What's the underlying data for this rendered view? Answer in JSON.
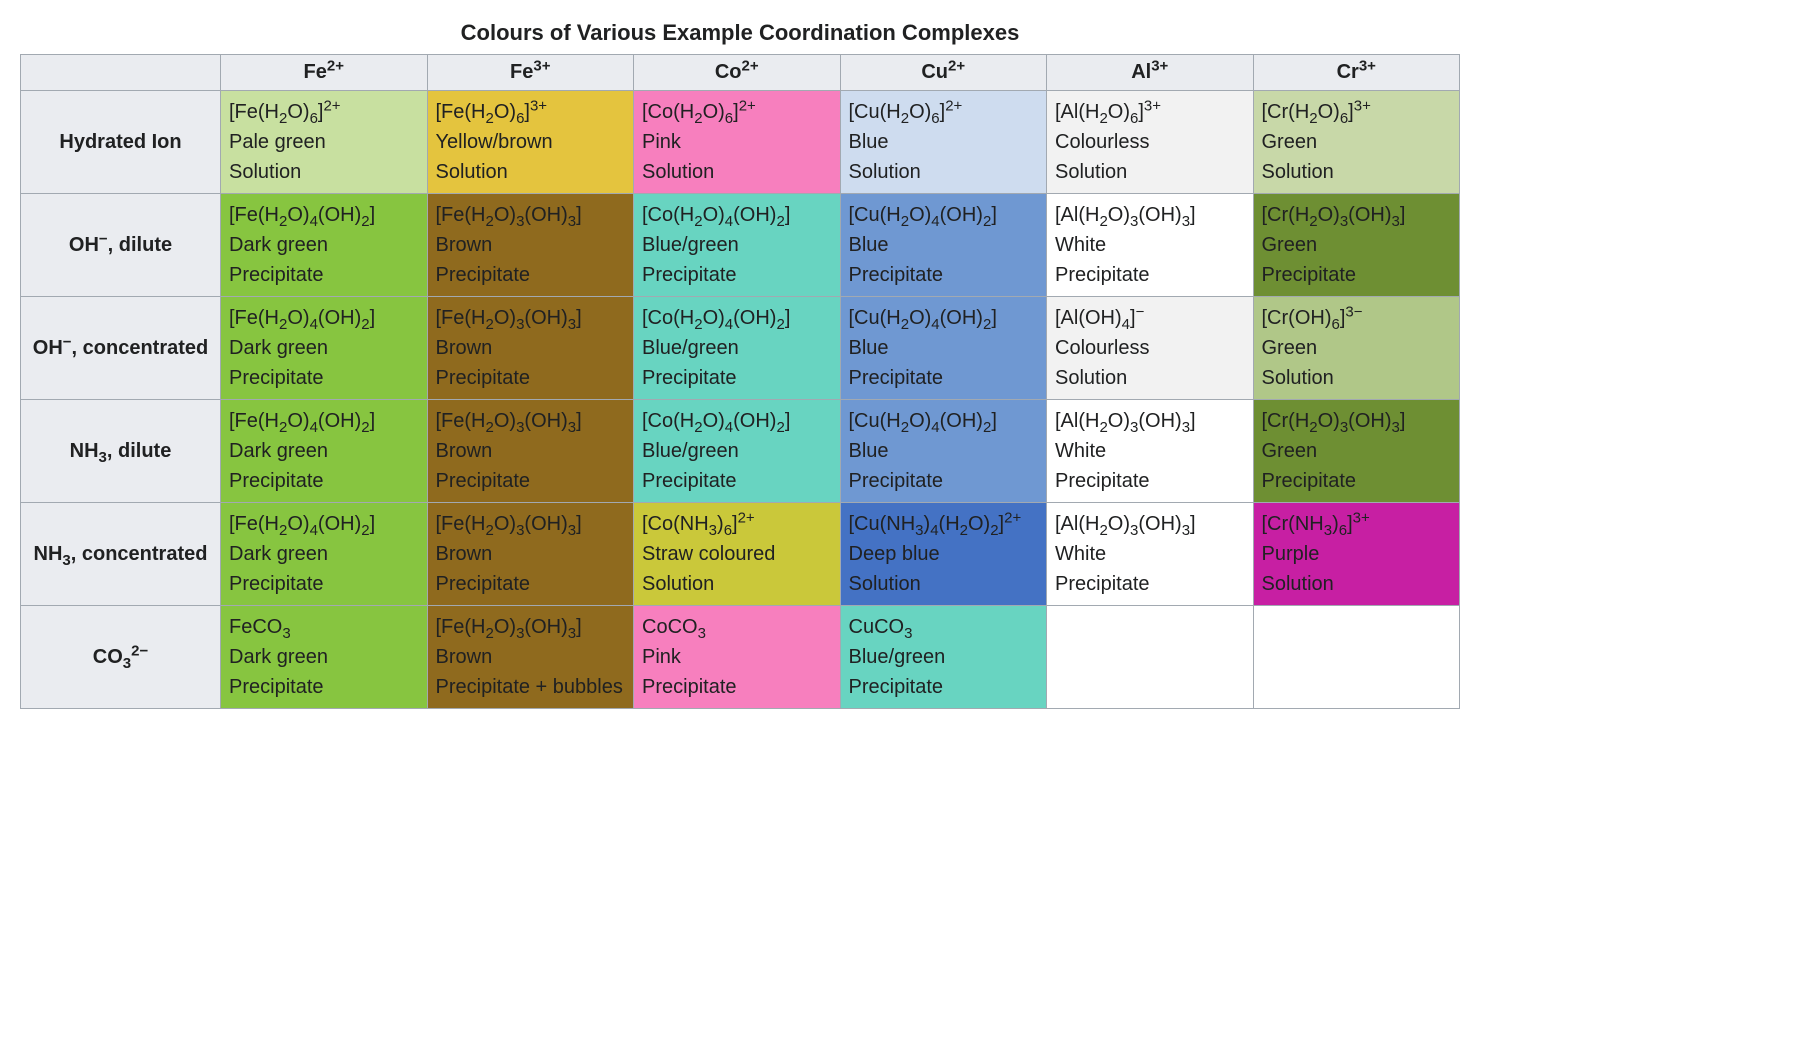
{
  "title": "Colours of Various Example Coordination Complexes",
  "fonts": {
    "caption_size_pt": 16,
    "cell_size_pt": 15,
    "header_weight": "bold"
  },
  "palette": {
    "header_bg": "#eaecf0",
    "border": "#a2a9b1",
    "page_bg": "#ffffff",
    "text": "#202122"
  },
  "columns": [
    {
      "id": "fe2",
      "base": "Fe",
      "charge": "2+"
    },
    {
      "id": "fe3",
      "base": "Fe",
      "charge": "3+"
    },
    {
      "id": "co2",
      "base": "Co",
      "charge": "2+"
    },
    {
      "id": "cu2",
      "base": "Cu",
      "charge": "2+"
    },
    {
      "id": "al3",
      "base": "Al",
      "charge": "3+"
    },
    {
      "id": "cr3",
      "base": "Cr",
      "charge": "3+"
    }
  ],
  "row_labels": {
    "hydrated": {
      "plain": "Hydrated Ion"
    },
    "oh_dilute": {
      "pre": "OH",
      "sup": "−",
      "post": ", dilute"
    },
    "oh_conc": {
      "pre": "OH",
      "sup": "−",
      "post": ", concentrated"
    },
    "nh3_dilute": {
      "pre": "NH",
      "sub": "3",
      "post": ", dilute"
    },
    "nh3_conc": {
      "pre": "NH",
      "sub": "3",
      "post": ", concentrated"
    },
    "co3": {
      "pre": "CO",
      "sub": "3",
      "sup": "2−"
    }
  },
  "cells": {
    "hydrated": {
      "fe2": {
        "formula_html": "[Fe(H<sub>2</sub>O)<sub>6</sub>]<sup>2+</sup>",
        "colour": "Pale green",
        "state": "Solution",
        "bg": "#c8e0a0"
      },
      "fe3": {
        "formula_html": "[Fe(H<sub>2</sub>O)<sub>6</sub>]<sup>3+</sup>",
        "colour": "Yellow/brown",
        "state": "Solution",
        "bg": "#e4c43e"
      },
      "co2": {
        "formula_html": "[Co(H<sub>2</sub>O)<sub>6</sub>]<sup>2+</sup>",
        "colour": "Pink",
        "state": "Solution",
        "bg": "#f77fbe"
      },
      "cu2": {
        "formula_html": "[Cu(H<sub>2</sub>O)<sub>6</sub>]<sup>2+</sup>",
        "colour": "Blue",
        "state": "Solution",
        "bg": "#cedcef"
      },
      "al3": {
        "formula_html": "[Al(H<sub>2</sub>O)<sub>6</sub>]<sup>3+</sup>",
        "colour": "Colourless",
        "state": "Solution",
        "bg": "#f2f2f2"
      },
      "cr3": {
        "formula_html": "[Cr(H<sub>2</sub>O)<sub>6</sub>]<sup>3+</sup>",
        "colour": "Green",
        "state": "Solution",
        "bg": "#c8d8a8"
      }
    },
    "oh_dilute": {
      "fe2": {
        "formula_html": "[Fe(H<sub>2</sub>O)<sub>4</sub>(OH)<sub>2</sub>]",
        "colour": "Dark green",
        "state": "Precipitate",
        "bg": "#87c540"
      },
      "fe3": {
        "formula_html": "[Fe(H<sub>2</sub>O)<sub>3</sub>(OH)<sub>3</sub>]",
        "colour": "Brown",
        "state": "Precipitate",
        "bg": "#8f6a1e"
      },
      "co2": {
        "formula_html": "[Co(H<sub>2</sub>O)<sub>4</sub>(OH)<sub>2</sub>]",
        "colour": "Blue/green",
        "state": "Precipitate",
        "bg": "#68d4c1"
      },
      "cu2": {
        "formula_html": "[Cu(H<sub>2</sub>O)<sub>4</sub>(OH)<sub>2</sub>]",
        "colour": "Blue",
        "state": "Precipitate",
        "bg": "#6f98d2"
      },
      "al3": {
        "formula_html": "[Al(H<sub>2</sub>O)<sub>3</sub>(OH)<sub>3</sub>]",
        "colour": "White",
        "state": "Precipitate",
        "bg": "#ffffff"
      },
      "cr3": {
        "formula_html": "[Cr(H<sub>2</sub>O)<sub>3</sub>(OH)<sub>3</sub>]",
        "colour": "Green",
        "state": "Precipitate",
        "bg": "#6e8f33"
      }
    },
    "oh_conc": {
      "fe2": {
        "formula_html": "[Fe(H<sub>2</sub>O)<sub>4</sub>(OH)<sub>2</sub>]",
        "colour": "Dark green",
        "state": "Precipitate",
        "bg": "#87c540"
      },
      "fe3": {
        "formula_html": "[Fe(H<sub>2</sub>O)<sub>3</sub>(OH)<sub>3</sub>]",
        "colour": "Brown",
        "state": "Precipitate",
        "bg": "#8f6a1e"
      },
      "co2": {
        "formula_html": "[Co(H<sub>2</sub>O)<sub>4</sub>(OH)<sub>2</sub>]",
        "colour": "Blue/green",
        "state": "Precipitate",
        "bg": "#68d4c1"
      },
      "cu2": {
        "formula_html": "[Cu(H<sub>2</sub>O)<sub>4</sub>(OH)<sub>2</sub>]",
        "colour": "Blue",
        "state": "Precipitate",
        "bg": "#6f98d2"
      },
      "al3": {
        "formula_html": "[Al(OH)<sub>4</sub>]<sup>−</sup>",
        "colour": "Colourless",
        "state": "Solution",
        "bg": "#f2f2f2"
      },
      "cr3": {
        "formula_html": "[Cr(OH)<sub>6</sub>]<sup>3−</sup>",
        "colour": "Green",
        "state": "Solution",
        "bg": "#b0c788"
      }
    },
    "nh3_dilute": {
      "fe2": {
        "formula_html": "[Fe(H<sub>2</sub>O)<sub>4</sub>(OH)<sub>2</sub>]",
        "colour": "Dark green",
        "state": "Precipitate",
        "bg": "#87c540"
      },
      "fe3": {
        "formula_html": "[Fe(H<sub>2</sub>O)<sub>3</sub>(OH)<sub>3</sub>]",
        "colour": "Brown",
        "state": "Precipitate",
        "bg": "#8f6a1e"
      },
      "co2": {
        "formula_html": "[Co(H<sub>2</sub>O)<sub>4</sub>(OH)<sub>2</sub>]",
        "colour": "Blue/green",
        "state": "Precipitate",
        "bg": "#68d4c1"
      },
      "cu2": {
        "formula_html": "[Cu(H<sub>2</sub>O)<sub>4</sub>(OH)<sub>2</sub>]",
        "colour": "Blue",
        "state": "Precipitate",
        "bg": "#6f98d2"
      },
      "al3": {
        "formula_html": "[Al(H<sub>2</sub>O)<sub>3</sub>(OH)<sub>3</sub>]",
        "colour": "White",
        "state": "Precipitate",
        "bg": "#ffffff"
      },
      "cr3": {
        "formula_html": "[Cr(H<sub>2</sub>O)<sub>3</sub>(OH)<sub>3</sub>]",
        "colour": "Green",
        "state": "Precipitate",
        "bg": "#6e8f33"
      }
    },
    "nh3_conc": {
      "fe2": {
        "formula_html": "[Fe(H<sub>2</sub>O)<sub>4</sub>(OH)<sub>2</sub>]",
        "colour": "Dark green",
        "state": "Precipitate",
        "bg": "#87c540"
      },
      "fe3": {
        "formula_html": "[Fe(H<sub>2</sub>O)<sub>3</sub>(OH)<sub>3</sub>]",
        "colour": "Brown",
        "state": "Precipitate",
        "bg": "#8f6a1e"
      },
      "co2": {
        "formula_html": "[Co(NH<sub>3</sub>)<sub>6</sub>]<sup>2+</sup>",
        "colour": "Straw coloured",
        "state": "Solution",
        "bg": "#cac83a"
      },
      "cu2": {
        "formula_html": "[Cu(NH<sub>3</sub>)<sub>4</sub>(H<sub>2</sub>O)<sub>2</sub>]<sup>2+</sup>",
        "colour": "Deep blue",
        "state": "Solution",
        "bg": "#4472c4"
      },
      "al3": {
        "formula_html": "[Al(H<sub>2</sub>O)<sub>3</sub>(OH)<sub>3</sub>]",
        "colour": "White",
        "state": "Precipitate",
        "bg": "#ffffff"
      },
      "cr3": {
        "formula_html": "[Cr(NH<sub>3</sub>)<sub>6</sub>]<sup>3+</sup>",
        "colour": "Purple",
        "state": "Solution",
        "bg": "#c71fa3"
      }
    },
    "co3": {
      "fe2": {
        "formula_html": "FeCO<sub>3</sub>",
        "colour": "Dark green",
        "state": "Precipitate",
        "bg": "#87c540"
      },
      "fe3": {
        "formula_html": "[Fe(H<sub>2</sub>O)<sub>3</sub>(OH)<sub>3</sub>]",
        "colour": "Brown",
        "state": "Precipitate + bubbles",
        "bg": "#8f6a1e"
      },
      "co2": {
        "formula_html": "CoCO<sub>3</sub>",
        "colour": "Pink",
        "state": "Precipitate",
        "bg": "#f77fbe"
      },
      "cu2": {
        "formula_html": "CuCO<sub>3</sub>",
        "colour": "Blue/green",
        "state": "Precipitate",
        "bg": "#68d4c1"
      },
      "al3": null,
      "cr3": null
    }
  },
  "row_order": [
    "hydrated",
    "oh_dilute",
    "oh_conc",
    "nh3_dilute",
    "nh3_conc",
    "co3"
  ]
}
